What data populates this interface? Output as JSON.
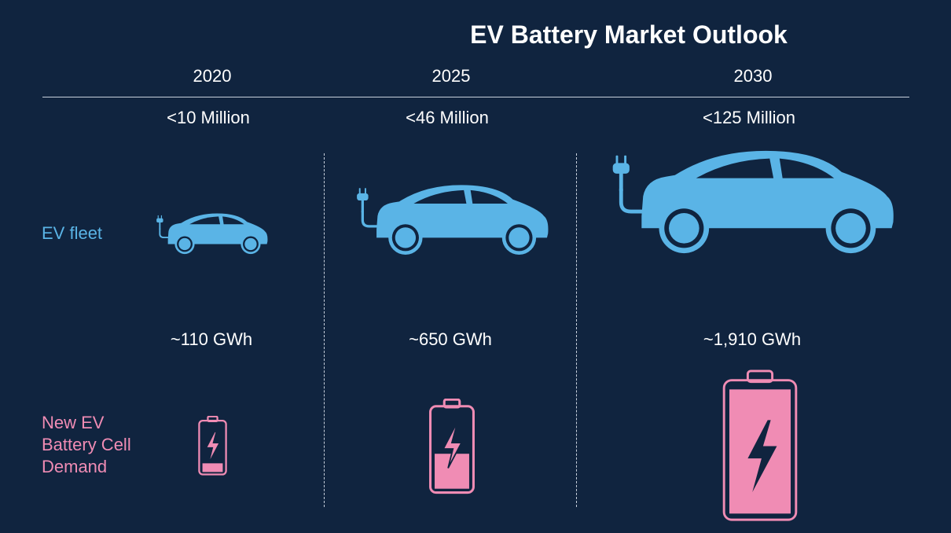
{
  "title": "EV Battery Market Outlook",
  "rows": {
    "fleet_label": "EV fleet",
    "battery_label": "New EV\nBattery Cell\nDemand"
  },
  "colors": {
    "background": "#10243f",
    "fleet": "#5ab4e6",
    "battery": "#f08cb4"
  },
  "chart_data": {
    "type": "table",
    "title": "EV Battery Market Outlook",
    "categories": [
      "2020",
      "2025",
      "2030"
    ],
    "series": [
      {
        "name": "EV fleet",
        "values": [
          "<10 Million",
          "<46 Million",
          "<125 Million"
        ]
      },
      {
        "name": "New EV Battery Cell Demand",
        "values": [
          "~110 GWh",
          "~650 GWh",
          "~1,910 GWh"
        ]
      }
    ],
    "battery_fill_fraction": [
      0.18,
      0.45,
      1.0
    ],
    "icons": [
      "car-icon",
      "battery-icon"
    ]
  }
}
